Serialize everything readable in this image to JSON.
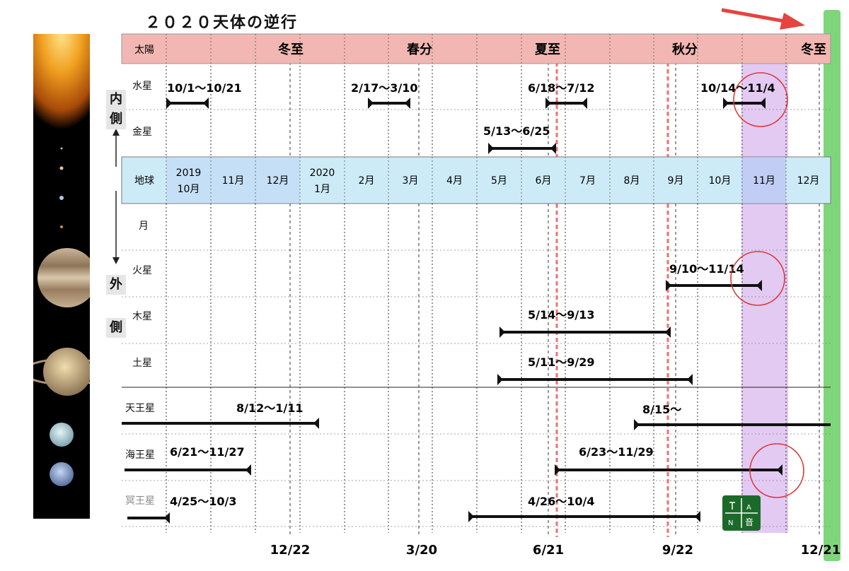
{
  "title": "２０２０天体の逆行",
  "sun_row": {
    "label": "太陽",
    "markers": [
      "冬至",
      "春分",
      "夏至",
      "秋分",
      "冬至"
    ]
  },
  "earth_row": {
    "label": "地球",
    "months": [
      {
        "line1": "2019",
        "line2": "10月"
      },
      {
        "line1": "11月",
        "line2": ""
      },
      {
        "line1": "12月",
        "line2": ""
      },
      {
        "line1": "2020",
        "line2": "1月"
      },
      {
        "line1": "2月",
        "line2": ""
      },
      {
        "line1": "3月",
        "line2": ""
      },
      {
        "line1": "4月",
        "line2": ""
      },
      {
        "line1": "5月",
        "line2": ""
      },
      {
        "line1": "6月",
        "line2": ""
      },
      {
        "line1": "7月",
        "line2": ""
      },
      {
        "line1": "8月",
        "line2": ""
      },
      {
        "line1": "9月",
        "line2": ""
      },
      {
        "line1": "10月",
        "line2": ""
      },
      {
        "line1": "11月",
        "line2": ""
      },
      {
        "line1": "12月",
        "line2": ""
      }
    ]
  },
  "bodies": [
    {
      "key": "mercury",
      "label": "水星",
      "periods": [
        "10/1〜10/21",
        "2/17〜3/10",
        "6/18〜7/12",
        "10/14〜11/4"
      ]
    },
    {
      "key": "venus",
      "label": "金星",
      "periods": [
        "5/13〜6/25"
      ]
    },
    {
      "key": "moon",
      "label": "月",
      "periods": []
    },
    {
      "key": "mars",
      "label": "火星",
      "periods": [
        "9/10〜11/14"
      ]
    },
    {
      "key": "jupiter",
      "label": "木星",
      "periods": [
        "5/14〜9/13"
      ]
    },
    {
      "key": "saturn",
      "label": "土星",
      "periods": [
        "5/11〜9/29"
      ]
    },
    {
      "key": "uranus",
      "label": "天王星",
      "periods": [
        "8/12〜1/11",
        "8/15〜"
      ]
    },
    {
      "key": "neptune",
      "label": "海王星",
      "periods": [
        "6/21〜11/27",
        "6/23〜11/29"
      ]
    },
    {
      "key": "pluto",
      "label": "冥王星",
      "periods": [
        "4/25〜10/3",
        "4/26〜10/4"
      ]
    }
  ],
  "side_labels": {
    "inner_1": "内",
    "inner_2": "側",
    "outer_1": "外",
    "outer_2": "側"
  },
  "date_labels": [
    "12/22",
    "3/20",
    "6/21",
    "9/22",
    "12/21"
  ],
  "badge": {
    "letters": [
      "A",
      "N",
      "音"
    ]
  },
  "colors": {
    "sun_row": "#f2b7b2",
    "earth_row": "#cdebf7",
    "highlight": "#d9b8ef",
    "green_bar": "#7fd67a",
    "circle": "#e03434",
    "arrow": "#e5443f",
    "solstice_line": "#f07070",
    "bar": "#111111"
  }
}
